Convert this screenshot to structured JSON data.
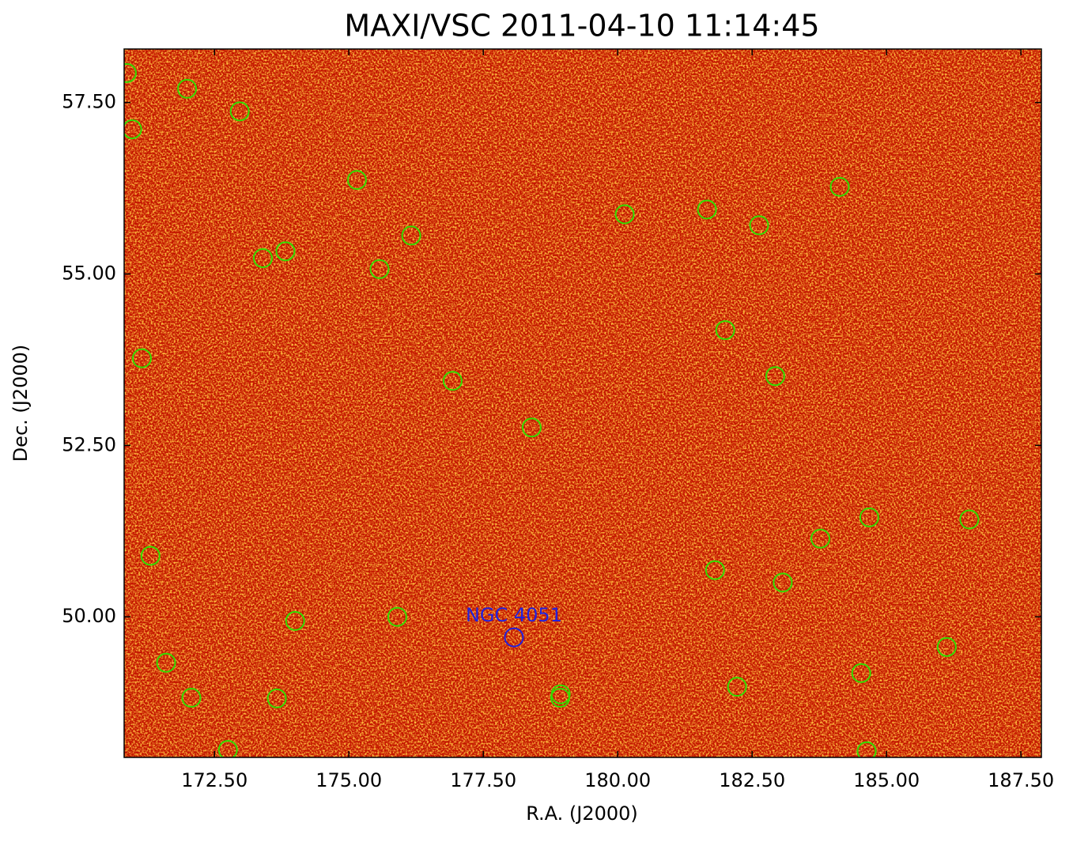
{
  "chart_data": {
    "type": "image",
    "title": "MAXI/VSC 2011-04-10 11:14:45",
    "xlabel": "R.A. (J2000)",
    "ylabel": "Dec. (J2000)",
    "xlim": [
      170.82,
      187.88
    ],
    "ylim": [
      47.95,
      58.28
    ],
    "xticks": [
      {
        "value": 172.5,
        "label": "172.50"
      },
      {
        "value": 175,
        "label": "175.00"
      },
      {
        "value": 177.5,
        "label": "177.50"
      },
      {
        "value": 180,
        "label": "180.00"
      },
      {
        "value": 182.5,
        "label": "182.50"
      },
      {
        "value": 185,
        "label": "185.00"
      },
      {
        "value": 187.5,
        "label": "187.50"
      }
    ],
    "yticks": [
      {
        "value": 50,
        "label": "50.00"
      },
      {
        "value": 52.5,
        "label": "52.50"
      },
      {
        "value": 55,
        "label": "55.00"
      },
      {
        "value": 57.5,
        "label": "57.50"
      }
    ],
    "background_color": "#c41c00",
    "sources": {
      "color": "#33dd00",
      "x": [
        170.87,
        171.99,
        172.97,
        170.97,
        175.15,
        184.13,
        180.13,
        181.66,
        182.63,
        176.16,
        173.82,
        173.4,
        175.57,
        182.0,
        171.15,
        182.93,
        176.93,
        178.4,
        184.68,
        186.54,
        183.77,
        171.31,
        181.81,
        183.07,
        174.0,
        175.9,
        171.6,
        186.12,
        184.53,
        182.22,
        172.07,
        173.66,
        178.94,
        178.93,
        172.75,
        184.63
      ],
      "y": [
        57.93,
        57.7,
        57.37,
        57.11,
        56.37,
        56.27,
        55.87,
        55.94,
        55.71,
        55.56,
        55.33,
        55.23,
        55.07,
        54.18,
        53.77,
        53.51,
        53.44,
        52.76,
        51.45,
        51.42,
        51.14,
        50.89,
        50.68,
        50.5,
        49.94,
        50.0,
        49.33,
        49.56,
        49.18,
        48.98,
        48.82,
        48.81,
        48.87,
        48.82,
        48.06,
        48.04
      ]
    },
    "target": {
      "label": "NGC 4051",
      "color": "#2222dd",
      "x": 178.07,
      "y": 49.7
    }
  }
}
